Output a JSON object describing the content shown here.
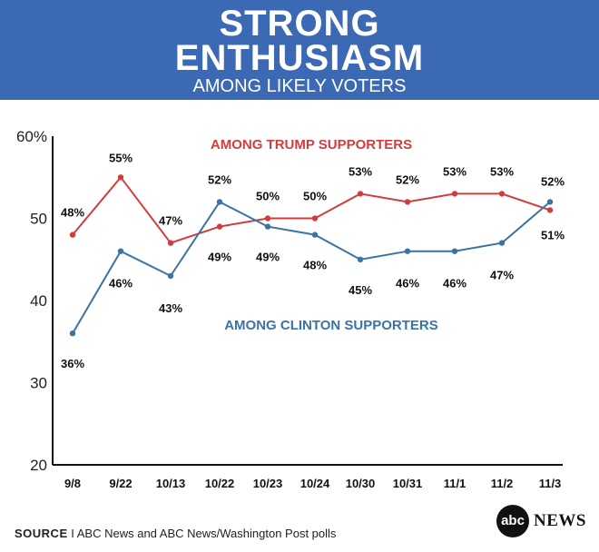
{
  "header": {
    "title_line1": "STRONG",
    "title_line2": "ENTHUSIASM",
    "subtitle": "AMONG LIKELY VOTERS"
  },
  "chart_data": {
    "type": "line",
    "title": "STRONG ENTHUSIASM",
    "subtitle": "AMONG LIKELY VOTERS",
    "categories": [
      "9/8",
      "9/22",
      "10/13",
      "10/22",
      "10/23",
      "10/24",
      "10/30",
      "10/31",
      "11/1",
      "11/2",
      "11/3"
    ],
    "ylim": [
      20,
      60
    ],
    "yticks": [
      "20",
      "30",
      "40",
      "50",
      "60%"
    ],
    "ytick_values": [
      20,
      30,
      40,
      50,
      60
    ],
    "series": [
      {
        "name": "AMONG TRUMP SUPPORTERS",
        "color": "#d13d3d",
        "values": [
          48,
          55,
          47,
          49,
          50,
          50,
          53,
          52,
          53,
          53,
          51
        ],
        "labels": [
          "48%",
          "55%",
          "47%",
          "49%",
          "50%",
          "50%",
          "53%",
          "52%",
          "53%",
          "53%",
          "51%"
        ]
      },
      {
        "name": "AMONG CLINTON SUPPORTERS",
        "color": "#3a73a6",
        "values": [
          36,
          46,
          43,
          52,
          49,
          48,
          45,
          46,
          46,
          47,
          52
        ],
        "labels": [
          "36%",
          "46%",
          "43%",
          "52%",
          "49%",
          "48%",
          "45%",
          "46%",
          "46%",
          "47%",
          "52%"
        ]
      }
    ],
    "grid": false
  },
  "footer": {
    "source_label": "SOURCE",
    "source_text": "I  ABC News and ABC News/Washington Post polls"
  },
  "branding": {
    "logo_text": "abc",
    "news_text": "NEWS"
  }
}
